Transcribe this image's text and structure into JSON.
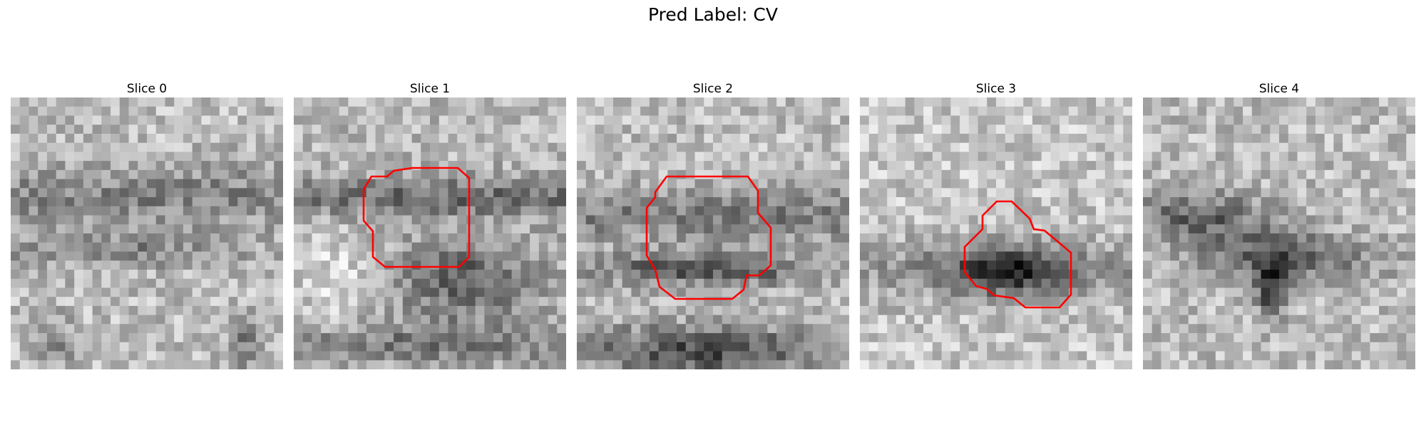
{
  "figure": {
    "title": "Pred Label: CV",
    "contour_color": "#ff0000"
  },
  "panels": [
    {
      "title": "Slice 0",
      "has_contour": false
    },
    {
      "title": "Slice 1",
      "has_contour": true
    },
    {
      "title": "Slice 2",
      "has_contour": true
    },
    {
      "title": "Slice 3",
      "has_contour": true
    },
    {
      "title": "Slice 4",
      "has_contour": false
    }
  ]
}
